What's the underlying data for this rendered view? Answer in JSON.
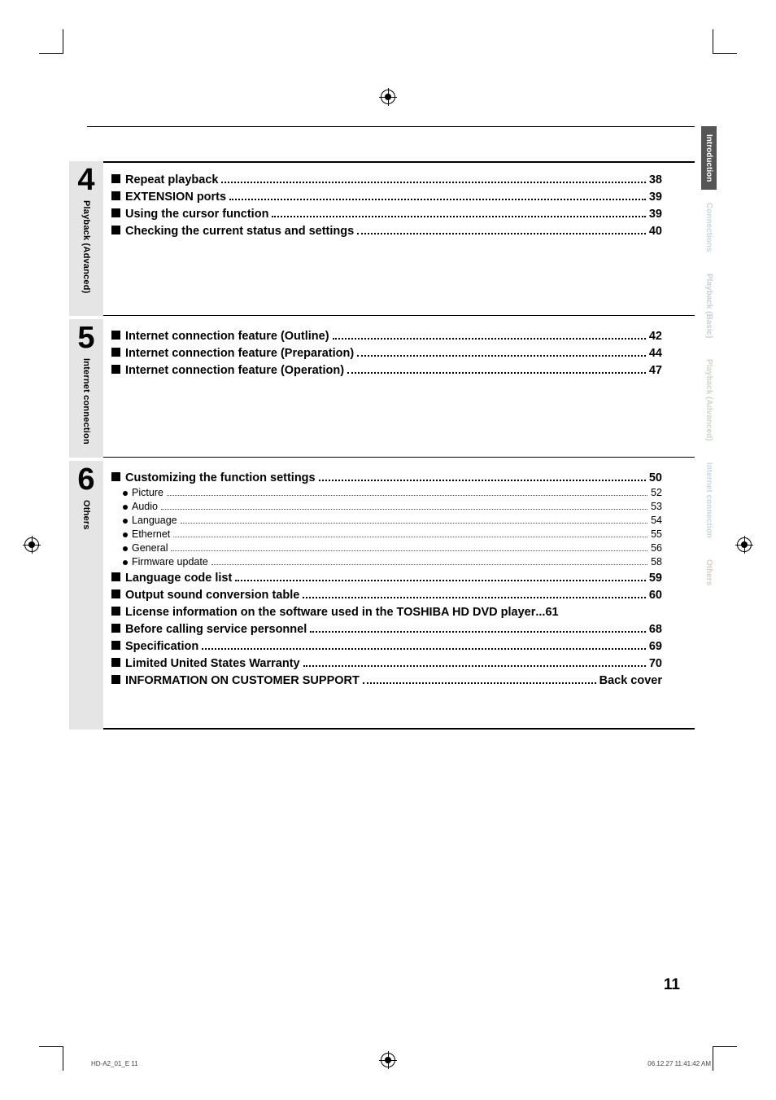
{
  "page_number": "11",
  "footer_left": "HD-A2_01_E   11",
  "footer_right": "06.12.27   11:41:42 AM",
  "side_tabs": [
    {
      "label": "Introduction",
      "style": "active"
    },
    {
      "label": "Connections",
      "style": "ghost"
    },
    {
      "label": "Playback (Basic)",
      "style": "ghost4"
    },
    {
      "label": "Playback (Advanced)",
      "style": "ghost3"
    },
    {
      "label": "Internet connection",
      "style": "ghost"
    },
    {
      "label": "Others",
      "style": "ghost2"
    }
  ],
  "sections": [
    {
      "num": "4",
      "label": "Playback (Advanced)",
      "min_height": 190,
      "rows": [
        {
          "type": "main",
          "label": "Repeat playback",
          "pg": "38"
        },
        {
          "type": "main",
          "label": "EXTENSION ports",
          "pg": "39"
        },
        {
          "type": "main",
          "label": "Using the cursor function",
          "pg": "39"
        },
        {
          "type": "main",
          "label": "Checking the current status and settings",
          "pg": "40"
        }
      ]
    },
    {
      "num": "5",
      "label": "Internet connection",
      "min_height": 170,
      "rows": [
        {
          "type": "main",
          "label": "Internet connection feature (Outline)",
          "pg": "42"
        },
        {
          "type": "main",
          "label": "Internet connection feature (Preparation)",
          "pg": "44"
        },
        {
          "type": "main",
          "label": "Internet connection feature (Operation)",
          "pg": "47"
        }
      ]
    },
    {
      "num": "6",
      "label": "Others",
      "min_height": 330,
      "rows": [
        {
          "type": "main",
          "label": "Customizing the function settings",
          "pg": "50"
        },
        {
          "type": "sub",
          "label": "Picture",
          "pg": "52"
        },
        {
          "type": "sub",
          "label": "Audio",
          "pg": "53"
        },
        {
          "type": "sub",
          "label": "Language",
          "pg": "54"
        },
        {
          "type": "sub",
          "label": "Ethernet",
          "pg": "55"
        },
        {
          "type": "sub",
          "label": "General",
          "pg": "56"
        },
        {
          "type": "sub",
          "label": "Firmware update",
          "pg": "58"
        },
        {
          "type": "main",
          "label": "Language code list",
          "pg": "59"
        },
        {
          "type": "main",
          "label": "Output sound conversion table",
          "pg": "60"
        },
        {
          "type": "main",
          "label": "License information on the software used in the TOSHIBA HD DVD player",
          "pg": "61",
          "nodots": true
        },
        {
          "type": "main",
          "label": "Before calling service personnel",
          "pg": "68"
        },
        {
          "type": "main",
          "label": "Specification",
          "pg": "69"
        },
        {
          "type": "main",
          "label": "Limited United States Warranty",
          "pg": "70"
        },
        {
          "type": "main",
          "label": "INFORMATION ON CUSTOMER SUPPORT",
          "pg": "Back cover"
        }
      ]
    }
  ]
}
